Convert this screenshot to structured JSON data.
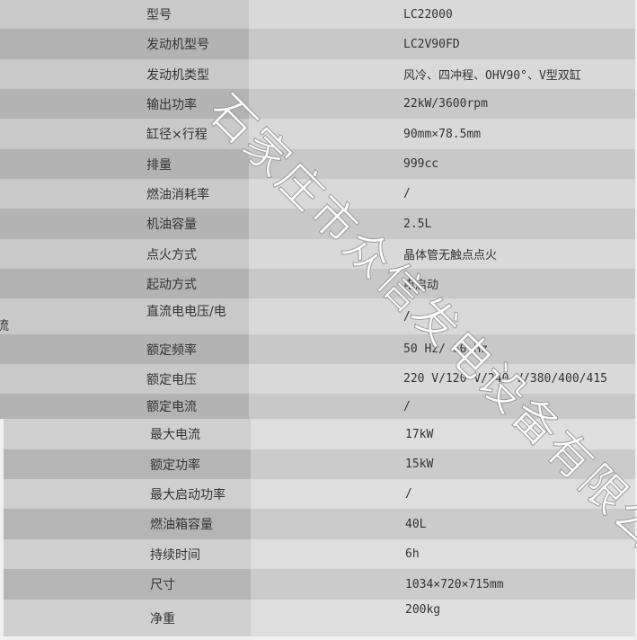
{
  "table_top": [
    {
      "label": "型号",
      "value": "LC22000"
    },
    {
      "label": "发动机型号",
      "value": "LC2V90FD"
    },
    {
      "label": "发动机类型",
      "value": "风冷、四冲程、OHV90°、V型双缸"
    },
    {
      "label": "输出功率",
      "value": "22kW/3600rpm"
    },
    {
      "label": "缸径×行程",
      "value": "90mm×78.5mm"
    },
    {
      "label": "排量",
      "value": "999cc"
    },
    {
      "label": "燃油消耗率",
      "value": "/"
    },
    {
      "label": "机油容量",
      "value": "2.5L"
    },
    {
      "label": "点火方式",
      "value": "晶体管无触点点火"
    },
    {
      "label": "起动方式",
      "value": "电启动"
    },
    {
      "label": "直流电电压/电",
      "label_wrap": "流",
      "value": "/"
    },
    {
      "label": "额定频率",
      "value": "50 Hz/ 60 Hz"
    },
    {
      "label": "额定电压",
      "value": "220 V/120 V/240 V/380/400/415"
    },
    {
      "label": "额定电流",
      "value": "/"
    }
  ],
  "table_bottom": [
    {
      "label": "最大电流",
      "value": "17kW"
    },
    {
      "label": "额定功率",
      "value": "15kW"
    },
    {
      "label": "最大启动功率",
      "value": "/"
    },
    {
      "label": "燃油箱容量",
      "value": "40L"
    },
    {
      "label": "持续时间",
      "value": "6h"
    },
    {
      "label": "尺寸",
      "value": "1034×720×715mm"
    },
    {
      "label": "净重",
      "value": "200kg"
    }
  ],
  "watermark": "石家庄市众信发电设备有限公司"
}
